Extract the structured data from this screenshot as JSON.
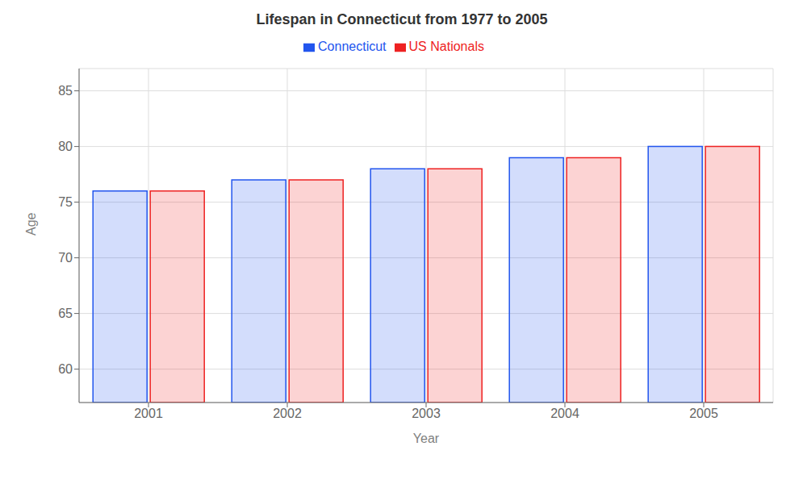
{
  "chart_data": {
    "type": "bar",
    "title": "Lifespan in Connecticut from 1977 to 2005",
    "x_label": "Year",
    "y_label": "Age",
    "categories": [
      "2001",
      "2002",
      "2003",
      "2004",
      "2005"
    ],
    "series": [
      {
        "name": "Connecticut",
        "color": "#2255ee",
        "values": [
          76,
          77,
          78,
          79,
          80
        ]
      },
      {
        "name": "US Nationals",
        "color": "#ee2222",
        "values": [
          76,
          77,
          78,
          79,
          80
        ]
      }
    ],
    "ylim": [
      57,
      87
    ],
    "yticks": [
      60,
      65,
      70,
      75,
      80,
      85
    ],
    "grid": true,
    "legend": "top"
  }
}
